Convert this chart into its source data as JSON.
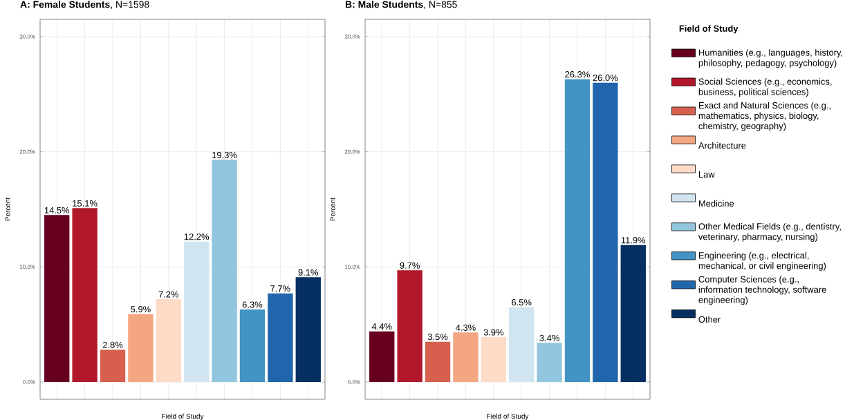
{
  "chart_data": [
    {
      "type": "bar",
      "title": "**A: Female Students**, N=1598",
      "xlabel": "Field of Study",
      "ylabel": "Percent",
      "categories": [
        null,
        null,
        null,
        null,
        null,
        null,
        null,
        null,
        null,
        null
      ],
      "values": [
        14.5,
        15.1,
        2.8,
        5.9,
        7.2,
        12.2,
        19.3,
        6.3,
        7.7,
        9.1
      ],
      "value_labels": [
        "14.5%",
        "15.1%",
        "2.8%",
        "5.9%",
        "7.2%",
        "12.2%",
        "19.3%",
        "6.3%",
        "7.7%",
        "9.1%"
      ],
      "colors": [
        "#67001f",
        "#b2182b",
        "#d6604d",
        "#f4a582",
        "#fddbc7",
        "#d1e5f0",
        "#92c5de",
        "#4393c3",
        "#2166ac",
        "#053061"
      ],
      "ylim": [
        -1.5,
        31.5
      ],
      "yticks": [
        {
          "value": 0,
          "label": "0.0%"
        },
        {
          "value": 10,
          "label": "10.0%"
        },
        {
          "value": 20,
          "label": "20.0%"
        },
        {
          "value": 30,
          "label": "30.0%"
        }
      ],
      "grid": true,
      "tick_labels": "y"
    },
    {
      "type": "bar",
      "title": "**B: Male Students**, N=855",
      "xlabel": "Field of Study",
      "ylabel": "Percent",
      "legend_title": "Field of Study",
      "categories": [
        null,
        null,
        null,
        null,
        null,
        null,
        null,
        null,
        null,
        null
      ],
      "series": [
        {
          "name": "Humanities (e.g., languages, history, philosophy, pedagogy, psychology)",
          "color": "#67001f",
          "values": [
            4.4,
            null,
            null,
            null,
            null,
            null,
            null,
            null,
            null,
            null
          ],
          "value_labels": [
            "4.4%",
            null,
            null,
            null,
            null,
            null,
            null,
            null,
            null,
            null
          ]
        },
        {
          "name": "Social Sciences (e.g., economics, business, political sciences)",
          "color": "#b2182b",
          "values": [
            null,
            9.7,
            null,
            null,
            null,
            null,
            null,
            null,
            null,
            null
          ],
          "value_labels": [
            null,
            "9.7%",
            null,
            null,
            null,
            null,
            null,
            null,
            null,
            null
          ]
        },
        {
          "name": "Exact and Natural Sciences (e.g., mathematics, physics, biology, chemistry, geography)",
          "color": "#d6604d",
          "values": [
            null,
            null,
            3.5,
            null,
            null,
            null,
            null,
            null,
            null,
            null
          ],
          "value_labels": [
            null,
            null,
            "3.5%",
            null,
            null,
            null,
            null,
            null,
            null,
            null
          ]
        },
        {
          "name": "Architecture",
          "color": "#f4a582",
          "values": [
            null,
            null,
            null,
            4.3,
            null,
            null,
            null,
            null,
            null,
            null
          ],
          "value_labels": [
            null,
            null,
            null,
            "4.3%",
            null,
            null,
            null,
            null,
            null,
            null
          ]
        },
        {
          "name": "Law",
          "color": "#fddbc7",
          "values": [
            null,
            null,
            null,
            null,
            3.9,
            null,
            null,
            null,
            null,
            null
          ],
          "value_labels": [
            null,
            null,
            null,
            null,
            "3.9%",
            null,
            null,
            null,
            null,
            null
          ]
        },
        {
          "name": "Medicine",
          "color": "#d1e5f0",
          "values": [
            null,
            null,
            null,
            null,
            null,
            6.5,
            null,
            null,
            null,
            null
          ],
          "value_labels": [
            null,
            null,
            null,
            null,
            null,
            "6.5%",
            null,
            null,
            null,
            null
          ]
        },
        {
          "name": "Other Medical Fields (e.g., dentistry, veterinary, pharmacy, nursing)",
          "color": "#92c5de",
          "values": [
            null,
            null,
            null,
            null,
            null,
            null,
            3.4,
            null,
            null,
            null
          ],
          "value_labels": [
            null,
            null,
            null,
            null,
            null,
            null,
            "3.4%",
            null,
            null,
            null
          ]
        },
        {
          "name": "Engineering (e.g., electrical, mechanical, or civil engineering)",
          "color": "#4393c3",
          "values": [
            null,
            null,
            null,
            null,
            null,
            null,
            null,
            26.3,
            null,
            null
          ],
          "value_labels": [
            null,
            null,
            null,
            null,
            null,
            null,
            null,
            "26.3%",
            null,
            null
          ]
        },
        {
          "name": "Computer Sciences (e.g., information technology, software engineering)",
          "color": "#2166ac",
          "values": [
            null,
            null,
            null,
            null,
            null,
            null,
            null,
            null,
            26.0,
            null
          ],
          "value_labels": [
            null,
            null,
            null,
            null,
            null,
            null,
            null,
            null,
            "26.0%",
            null
          ]
        },
        {
          "name": "Other",
          "color": "#053061",
          "values": [
            null,
            null,
            null,
            null,
            null,
            null,
            null,
            null,
            null,
            11.9
          ],
          "value_labels": [
            null,
            null,
            null,
            null,
            null,
            null,
            null,
            null,
            null,
            "11.9%"
          ]
        }
      ],
      "ylim": [
        -1.5,
        31.5
      ],
      "yticks": [
        {
          "value": 0,
          "label": "0.0%"
        },
        {
          "value": 10,
          "label": "10.0%"
        },
        {
          "value": 20,
          "label": "20.0%"
        },
        {
          "value": 30,
          "label": "30.0%"
        }
      ],
      "grid": true,
      "tick_labels": "y",
      "legend": "right"
    }
  ]
}
